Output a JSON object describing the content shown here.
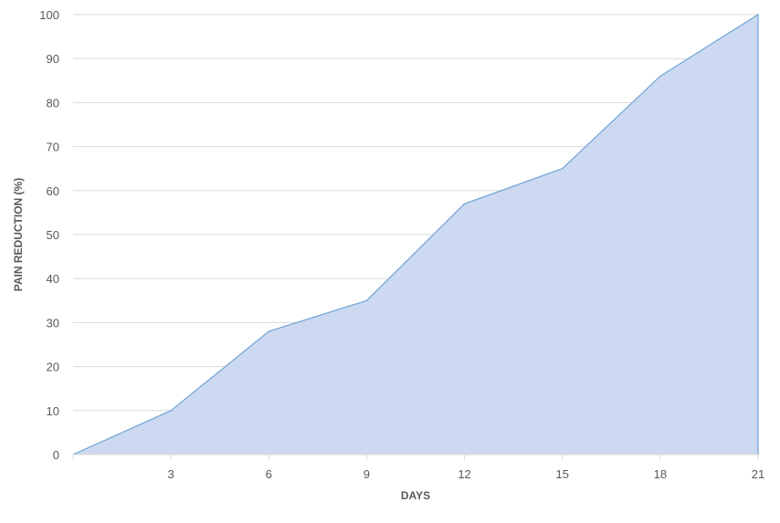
{
  "chart_data": {
    "type": "area",
    "title": "",
    "xlabel": "DAYS",
    "ylabel": "PAIN REDUCTION (%)",
    "x": [
      0,
      3,
      6,
      9,
      12,
      15,
      18,
      21
    ],
    "series": [
      {
        "values": [
          0,
          10,
          28,
          35,
          57,
          65,
          86,
          100
        ]
      }
    ],
    "xlim": [
      0,
      21
    ],
    "ylim": [
      0,
      100
    ],
    "x_ticks": [
      "3",
      "6",
      "9",
      "12",
      "15",
      "18",
      "21"
    ],
    "y_ticks": [
      "0",
      "10",
      "20",
      "30",
      "40",
      "50",
      "60",
      "70",
      "80",
      "90",
      "100"
    ],
    "grid": "horizontal",
    "legend": "none",
    "colors": {
      "fill": "#c9d7ef",
      "line": "#6fa3d6",
      "grid": "#d9d9d9",
      "text": "#595959"
    }
  }
}
